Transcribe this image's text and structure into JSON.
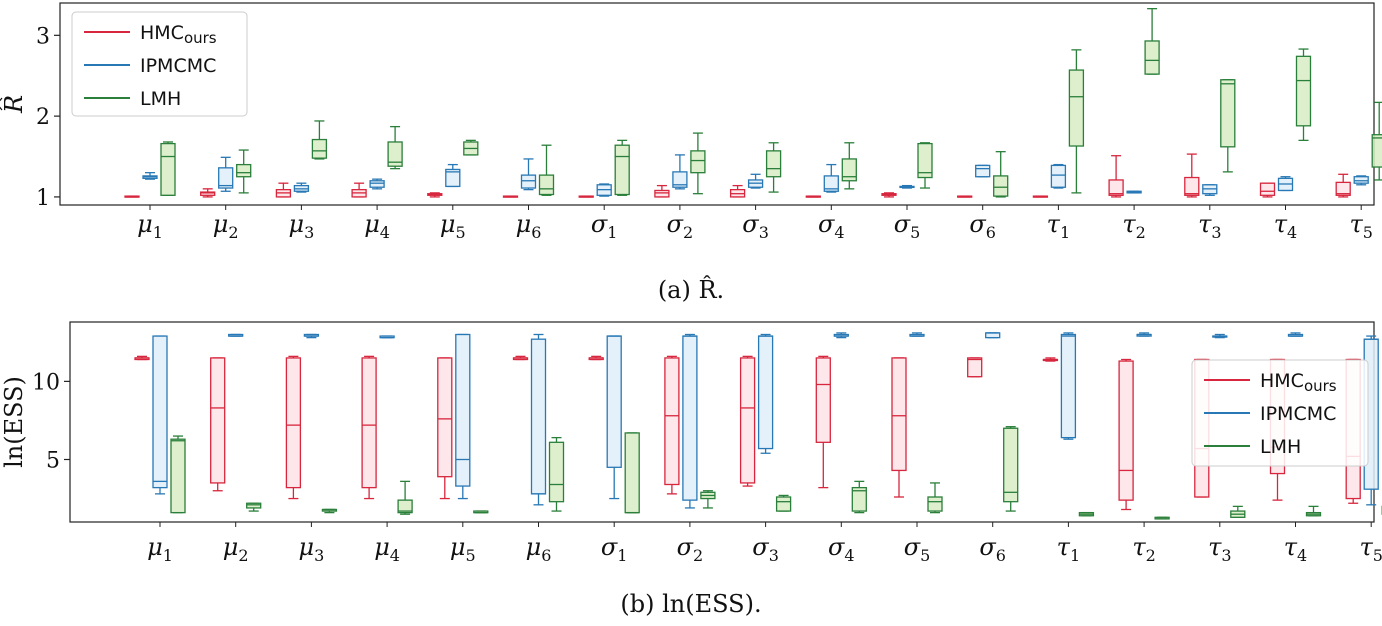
{
  "colors": {
    "HMC": "#d7263d",
    "IPMCMC": "#2878b5",
    "LMH": "#2a7f3a",
    "HMC_fill": "#fde3e6",
    "IPMCMC_fill": "#dfeef9",
    "LMH_fill": "#d8ecc4"
  },
  "chart_data": [
    {
      "type": "box",
      "caption": "(a) R̂.",
      "ylabel": "R̂",
      "ylim": [
        0.9,
        3.4
      ],
      "yticks": [
        1,
        2,
        3
      ],
      "legend": {
        "placement": "top-left",
        "entries": [
          "HMCours",
          "IPMCMC",
          "LMH"
        ]
      },
      "categories": [
        "μ1",
        "μ2",
        "μ3",
        "μ4",
        "μ5",
        "μ6",
        "σ1",
        "σ2",
        "σ3",
        "σ4",
        "σ5",
        "σ6",
        "τ1",
        "τ2",
        "τ3",
        "τ4",
        "τ5"
      ],
      "series": [
        {
          "name": "HMCours",
          "color": "HMC",
          "boxes": [
            [
              1.0,
              1.0,
              1.0,
              1.01,
              1.01
            ],
            [
              1.0,
              1.02,
              1.05,
              1.06,
              1.1
            ],
            [
              1.0,
              1.0,
              1.05,
              1.09,
              1.17
            ],
            [
              1.0,
              1.0,
              1.05,
              1.09,
              1.17
            ],
            [
              1.0,
              1.02,
              1.03,
              1.04,
              1.05
            ],
            [
              1.0,
              1.0,
              1.0,
              1.01,
              1.01
            ],
            [
              1.0,
              1.0,
              1.0,
              1.01,
              1.01
            ],
            [
              1.0,
              1.0,
              1.05,
              1.08,
              1.14
            ],
            [
              1.0,
              1.0,
              1.04,
              1.09,
              1.14
            ],
            [
              1.0,
              1.0,
              1.0,
              1.01,
              1.01
            ],
            [
              1.0,
              1.02,
              1.03,
              1.04,
              1.05
            ],
            [
              1.0,
              1.0,
              1.0,
              1.01,
              1.01
            ],
            [
              1.0,
              1.0,
              1.0,
              1.01,
              1.01
            ],
            [
              1.0,
              1.02,
              1.04,
              1.21,
              1.51
            ],
            [
              1.0,
              1.02,
              1.04,
              1.24,
              1.53
            ],
            [
              1.0,
              1.02,
              1.07,
              1.17,
              1.17
            ],
            [
              1.0,
              1.02,
              1.04,
              1.18,
              1.28
            ]
          ]
        },
        {
          "name": "IPMCMC",
          "color": "IPMCMC",
          "boxes": [
            [
              1.22,
              1.23,
              1.25,
              1.26,
              1.3
            ],
            [
              1.07,
              1.11,
              1.14,
              1.36,
              1.49
            ],
            [
              1.06,
              1.07,
              1.1,
              1.14,
              1.17
            ],
            [
              1.1,
              1.12,
              1.17,
              1.2,
              1.22
            ],
            [
              1.13,
              1.13,
              1.31,
              1.34,
              1.4
            ],
            [
              1.09,
              1.11,
              1.2,
              1.27,
              1.47
            ],
            [
              1.01,
              1.02,
              1.09,
              1.15,
              1.16
            ],
            [
              1.1,
              1.12,
              1.15,
              1.31,
              1.52
            ],
            [
              1.11,
              1.12,
              1.17,
              1.21,
              1.28
            ],
            [
              1.06,
              1.07,
              1.1,
              1.26,
              1.4
            ],
            [
              1.11,
              1.12,
              1.12,
              1.13,
              1.14
            ],
            [
              1.25,
              1.25,
              1.35,
              1.39,
              1.39
            ],
            [
              1.11,
              1.12,
              1.27,
              1.39,
              1.4
            ],
            [
              1.05,
              1.05,
              1.06,
              1.07,
              1.07
            ],
            [
              1.02,
              1.04,
              1.1,
              1.15,
              1.15
            ],
            [
              1.08,
              1.08,
              1.16,
              1.23,
              1.25
            ],
            [
              1.15,
              1.17,
              1.2,
              1.25,
              1.26
            ]
          ]
        },
        {
          "name": "LMH",
          "color": "LMH",
          "boxes": [
            [
              1.02,
              1.02,
              1.5,
              1.66,
              1.68
            ],
            [
              1.05,
              1.25,
              1.3,
              1.4,
              1.58
            ],
            [
              1.47,
              1.48,
              1.57,
              1.71,
              1.94
            ],
            [
              1.35,
              1.38,
              1.43,
              1.68,
              1.87
            ],
            [
              1.52,
              1.52,
              1.6,
              1.68,
              1.7
            ],
            [
              1.02,
              1.03,
              1.1,
              1.27,
              1.64
            ],
            [
              1.02,
              1.03,
              1.5,
              1.64,
              1.7
            ],
            [
              1.04,
              1.3,
              1.45,
              1.57,
              1.79
            ],
            [
              1.06,
              1.25,
              1.35,
              1.57,
              1.67
            ],
            [
              1.1,
              1.2,
              1.25,
              1.47,
              1.67
            ],
            [
              1.11,
              1.24,
              1.3,
              1.66,
              1.67
            ],
            [
              1.0,
              1.01,
              1.12,
              1.26,
              1.56
            ],
            [
              1.05,
              1.63,
              2.24,
              2.57,
              2.82
            ],
            [
              2.52,
              2.52,
              2.69,
              2.93,
              3.33
            ],
            [
              1.31,
              1.62,
              2.4,
              2.45,
              2.45
            ],
            [
              1.7,
              1.88,
              2.44,
              2.74,
              2.83
            ],
            [
              1.21,
              1.37,
              1.73,
              1.77,
              2.17
            ]
          ]
        }
      ]
    },
    {
      "type": "box",
      "caption": "(b) ln(ESS).",
      "ylabel": "ln(ESS)",
      "ylim": [
        1.0,
        13.8
      ],
      "yticks": [
        5,
        10
      ],
      "legend": {
        "placement": "right",
        "entries": [
          "HMCours",
          "IPMCMC",
          "LMH"
        ]
      },
      "categories": [
        "μ1",
        "μ2",
        "μ3",
        "μ4",
        "μ5",
        "μ6",
        "σ1",
        "σ2",
        "σ3",
        "σ4",
        "σ5",
        "σ6",
        "τ1",
        "τ2",
        "τ3",
        "τ4",
        "τ5"
      ],
      "series": [
        {
          "name": "HMCours",
          "color": "HMC",
          "boxes": [
            [
              11.4,
              11.4,
              11.5,
              11.5,
              11.6
            ],
            [
              3.0,
              3.5,
              8.3,
              11.5,
              11.5
            ],
            [
              2.5,
              3.2,
              7.2,
              11.5,
              11.6
            ],
            [
              2.5,
              3.2,
              7.2,
              11.5,
              11.6
            ],
            [
              2.5,
              3.9,
              7.6,
              11.5,
              11.5
            ],
            [
              11.4,
              11.4,
              11.5,
              11.5,
              11.6
            ],
            [
              11.4,
              11.4,
              11.5,
              11.5,
              11.6
            ],
            [
              2.8,
              3.4,
              7.8,
              11.5,
              11.6
            ],
            [
              3.3,
              3.5,
              8.3,
              11.5,
              11.6
            ],
            [
              3.2,
              6.1,
              9.8,
              11.5,
              11.6
            ],
            [
              2.6,
              4.3,
              7.8,
              11.5,
              11.5
            ],
            [
              10.3,
              10.3,
              11.4,
              11.5,
              11.5
            ],
            [
              11.3,
              11.4,
              11.4,
              11.4,
              11.5
            ],
            [
              1.8,
              2.4,
              4.3,
              11.3,
              11.4
            ],
            [
              2.6,
              2.6,
              5.7,
              11.4,
              11.4
            ],
            [
              2.4,
              4.1,
              5.8,
              11.4,
              11.4
            ],
            [
              2.2,
              2.5,
              5.2,
              11.4,
              11.4
            ]
          ]
        },
        {
          "name": "IPMCMC",
          "color": "IPMCMC",
          "boxes": [
            [
              2.8,
              3.2,
              3.6,
              12.9,
              12.9
            ],
            [
              12.9,
              12.9,
              12.9,
              13.0,
              13.0
            ],
            [
              12.8,
              12.9,
              12.9,
              13.0,
              13.0
            ],
            [
              12.8,
              12.8,
              12.8,
              12.9,
              12.9
            ],
            [
              2.5,
              3.3,
              5.0,
              13.0,
              13.0
            ],
            [
              2.1,
              2.8,
              2.8,
              12.7,
              13.0
            ],
            [
              2.5,
              4.5,
              12.9,
              12.9,
              12.9
            ],
            [
              1.9,
              2.4,
              12.9,
              12.9,
              13.0
            ],
            [
              5.4,
              5.7,
              12.9,
              12.9,
              13.0
            ],
            [
              12.8,
              12.9,
              12.9,
              13.0,
              13.1
            ],
            [
              12.9,
              12.9,
              12.9,
              13.0,
              13.1
            ],
            [
              12.8,
              12.8,
              13.1,
              13.1,
              13.1
            ],
            [
              6.3,
              6.4,
              12.9,
              13.0,
              13.1
            ],
            [
              12.9,
              12.9,
              13.0,
              13.0,
              13.1
            ],
            [
              12.8,
              12.9,
              12.9,
              12.9,
              13.0
            ],
            [
              12.9,
              12.9,
              12.9,
              13.0,
              13.1
            ],
            [
              2.1,
              3.1,
              12.7,
              12.7,
              12.9
            ]
          ]
        },
        {
          "name": "LMH",
          "color": "LMH",
          "boxes": [
            [
              1.6,
              1.6,
              6.2,
              6.3,
              6.5
            ],
            [
              1.7,
              1.9,
              2.1,
              2.2,
              2.2
            ],
            [
              1.6,
              1.7,
              1.8,
              1.8,
              1.8
            ],
            [
              1.5,
              1.6,
              1.7,
              2.4,
              3.6
            ],
            [
              1.6,
              1.6,
              1.6,
              1.7,
              1.7
            ],
            [
              1.7,
              2.3,
              3.4,
              6.1,
              6.4
            ],
            [
              1.6,
              1.6,
              1.6,
              6.7,
              6.7
            ],
            [
              1.9,
              2.5,
              2.7,
              2.9,
              3.0
            ],
            [
              1.7,
              1.7,
              2.3,
              2.6,
              2.7
            ],
            [
              1.6,
              1.7,
              3.0,
              3.2,
              3.6
            ],
            [
              1.6,
              1.7,
              2.3,
              2.6,
              3.5
            ],
            [
              1.7,
              2.3,
              2.9,
              7.0,
              7.1
            ],
            [
              1.4,
              1.4,
              1.5,
              1.6,
              1.6
            ],
            [
              1.2,
              1.2,
              1.2,
              1.3,
              1.3
            ],
            [
              1.3,
              1.3,
              1.5,
              1.7,
              2.0
            ],
            [
              1.4,
              1.4,
              1.5,
              1.6,
              2.0
            ],
            [
              1.4,
              1.5,
              1.7,
              2.0,
              2.5
            ]
          ]
        }
      ]
    }
  ]
}
